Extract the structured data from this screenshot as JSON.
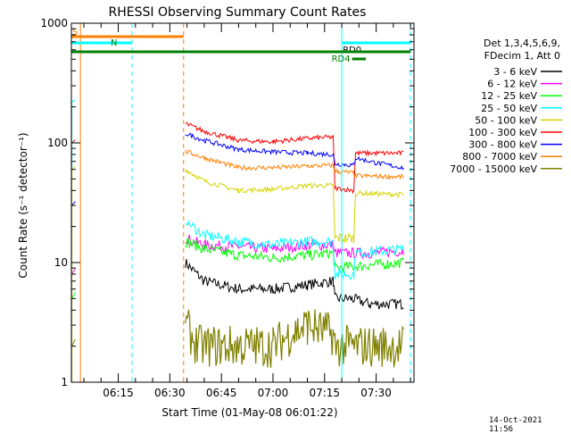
{
  "chart_data": {
    "type": "line",
    "title": "RHESSI Observing Summary Count Rates",
    "xlabel": "Start Time (01-May-08 06:01:22)",
    "ylabel": "Count Rate (s⁻¹ detector⁻¹)",
    "ylog": true,
    "ylim": [
      1,
      1000
    ],
    "x_unit": "UT",
    "x_range": [
      "06:01:22",
      "07:41:00"
    ],
    "x_ticks": [
      "06:15",
      "06:30",
      "06:45",
      "07:00",
      "07:15",
      "07:30"
    ],
    "y_ticks": [
      "1",
      "10",
      "100",
      "1000"
    ],
    "grid": false,
    "legend_position": "right",
    "legend_header": [
      "Det 1,3,4,5,6,9,",
      "FDecim 1, Att 0"
    ],
    "series": [
      {
        "name": "3 - 6 keV",
        "color": "#000000",
        "points": [
          [
            "06:34:30",
            10
          ],
          [
            "06:40:00",
            7
          ],
          [
            "06:50:00",
            6
          ],
          [
            "07:00:00",
            6
          ],
          [
            "07:10:00",
            6.5
          ],
          [
            "07:17:30",
            7
          ],
          [
            "07:18:00",
            5
          ],
          [
            "07:23:00",
            5
          ],
          [
            "07:28:00",
            4.5
          ],
          [
            "07:38:00",
            4.5
          ]
        ]
      },
      {
        "name": "6 - 12 keV",
        "color": "#ff00ff",
        "points": [
          [
            "06:34:30",
            16
          ],
          [
            "06:40:00",
            14
          ],
          [
            "06:50:00",
            13.5
          ],
          [
            "07:00:00",
            13
          ],
          [
            "07:10:00",
            14
          ],
          [
            "07:17:30",
            14
          ],
          [
            "07:18:00",
            12
          ],
          [
            "07:28:00",
            12
          ],
          [
            "07:38:00",
            12.5
          ]
        ]
      },
      {
        "name": "12 - 25 keV",
        "color": "#00ff00",
        "points": [
          [
            "06:34:30",
            15
          ],
          [
            "06:40:00",
            13
          ],
          [
            "06:50:00",
            11.5
          ],
          [
            "07:00:00",
            11
          ],
          [
            "07:10:00",
            11.5
          ],
          [
            "07:17:30",
            12
          ],
          [
            "07:18:00",
            9
          ],
          [
            "07:28:00",
            9.5
          ],
          [
            "07:38:00",
            10
          ]
        ]
      },
      {
        "name": "25 - 50 keV",
        "color": "#00ffff",
        "points": [
          [
            "06:34:30",
            22
          ],
          [
            "06:40:00",
            17
          ],
          [
            "06:50:00",
            15
          ],
          [
            "07:00:00",
            14
          ],
          [
            "07:10:00",
            15
          ],
          [
            "07:17:30",
            15
          ],
          [
            "07:18:00",
            8
          ],
          [
            "07:23:30",
            8
          ],
          [
            "07:24:00",
            12
          ],
          [
            "07:38:00",
            13
          ]
        ]
      },
      {
        "name": "50 - 100 keV",
        "color": "#d4d400",
        "points": [
          [
            "06:34:30",
            60
          ],
          [
            "06:40:00",
            48
          ],
          [
            "06:50:00",
            40
          ],
          [
            "07:00:00",
            41
          ],
          [
            "07:10:00",
            44
          ],
          [
            "07:17:30",
            44
          ],
          [
            "07:18:00",
            16
          ],
          [
            "07:23:30",
            16
          ],
          [
            "07:24:00",
            38
          ],
          [
            "07:38:00",
            37
          ]
        ]
      },
      {
        "name": "100 - 300 keV",
        "color": "#ff0000",
        "points": [
          [
            "06:34:30",
            145
          ],
          [
            "06:40:00",
            125
          ],
          [
            "06:50:00",
            105
          ],
          [
            "07:00:00",
            102
          ],
          [
            "07:05:00",
            106
          ],
          [
            "07:12:00",
            110
          ],
          [
            "07:17:30",
            112
          ],
          [
            "07:18:00",
            42
          ],
          [
            "07:23:30",
            40
          ],
          [
            "07:24:00",
            82
          ],
          [
            "07:38:00",
            82
          ]
        ]
      },
      {
        "name": "300 - 800 keV",
        "color": "#0000ff",
        "points": [
          [
            "06:34:30",
            120
          ],
          [
            "06:40:00",
            105
          ],
          [
            "06:50:00",
            88
          ],
          [
            "07:00:00",
            84
          ],
          [
            "07:10:00",
            82
          ],
          [
            "07:17:30",
            80
          ],
          [
            "07:18:00",
            67
          ],
          [
            "07:23:30",
            65
          ],
          [
            "07:24:00",
            75
          ],
          [
            "07:30:00",
            68
          ],
          [
            "07:38:00",
            62
          ]
        ]
      },
      {
        "name": "800 - 7000 keV",
        "color": "#ff8000",
        "points": [
          [
            "06:34:30",
            85
          ],
          [
            "06:40:00",
            75
          ],
          [
            "06:50:00",
            62
          ],
          [
            "07:00:00",
            62
          ],
          [
            "07:10:00",
            64
          ],
          [
            "07:17:30",
            65
          ],
          [
            "07:18:00",
            58
          ],
          [
            "07:23:30",
            56
          ],
          [
            "07:24:00",
            53
          ],
          [
            "07:38:00",
            52
          ]
        ]
      },
      {
        "name": "7000 - 15000 keV",
        "color": "#808000",
        "points": [
          [
            "06:34:30",
            3
          ],
          [
            "06:38:00",
            2
          ],
          [
            "06:45:00",
            2
          ],
          [
            "07:00:00",
            2
          ],
          [
            "07:05:00",
            2.5
          ],
          [
            "07:10:00",
            3
          ],
          [
            "07:17:30",
            2.5
          ],
          [
            "07:18:00",
            2
          ],
          [
            "07:38:00",
            2
          ]
        ]
      }
    ],
    "early_segment": {
      "series_colors": [
        "#ff00ff",
        "#0000ff",
        "#ff0000",
        "#00ffff",
        "#00ff00",
        "#808000",
        "#d4d400"
      ],
      "t_start": "06:01:30",
      "t_end": "06:02:30",
      "levels": [
        8,
        30,
        100,
        220,
        5,
        2,
        60
      ]
    },
    "state_bars": [
      {
        "label": "S",
        "color": "#ff8000",
        "start": "06:01:22",
        "end": "06:34:00",
        "level": "top"
      },
      {
        "label": "N",
        "color": "#00ffff",
        "start": "06:01:22",
        "end": "06:19:00",
        "level": "second"
      },
      {
        "label": "",
        "color": "#008000",
        "start": "06:01:22",
        "end": "07:20:00",
        "level": "third"
      },
      {
        "label": "RD0",
        "color": "#00ffff",
        "start": "07:20:00",
        "end": "07:40:00",
        "level": "second"
      },
      {
        "label": "",
        "color": "#008000",
        "start": "07:20:00",
        "end": "07:40:00",
        "level": "third"
      },
      {
        "label": "RD4",
        "color": "#008000",
        "start": "07:23:00",
        "end": "07:27:00",
        "level": "fourth"
      }
    ],
    "vlines": [
      {
        "time": "06:04:00",
        "color": "#ff8000",
        "style": "solid"
      },
      {
        "time": "06:19:00",
        "color": "#00ffff",
        "style": "dashed"
      },
      {
        "time": "06:34:00",
        "color": "#ff8000",
        "style": "dashed"
      },
      {
        "time": "07:20:00",
        "color": "#00ffff",
        "style": "solid"
      },
      {
        "time": "07:40:00",
        "color": "#00ffff",
        "style": "dashed"
      }
    ]
  },
  "footer": {
    "timestamp": "14-Oct-2021 11:56"
  }
}
